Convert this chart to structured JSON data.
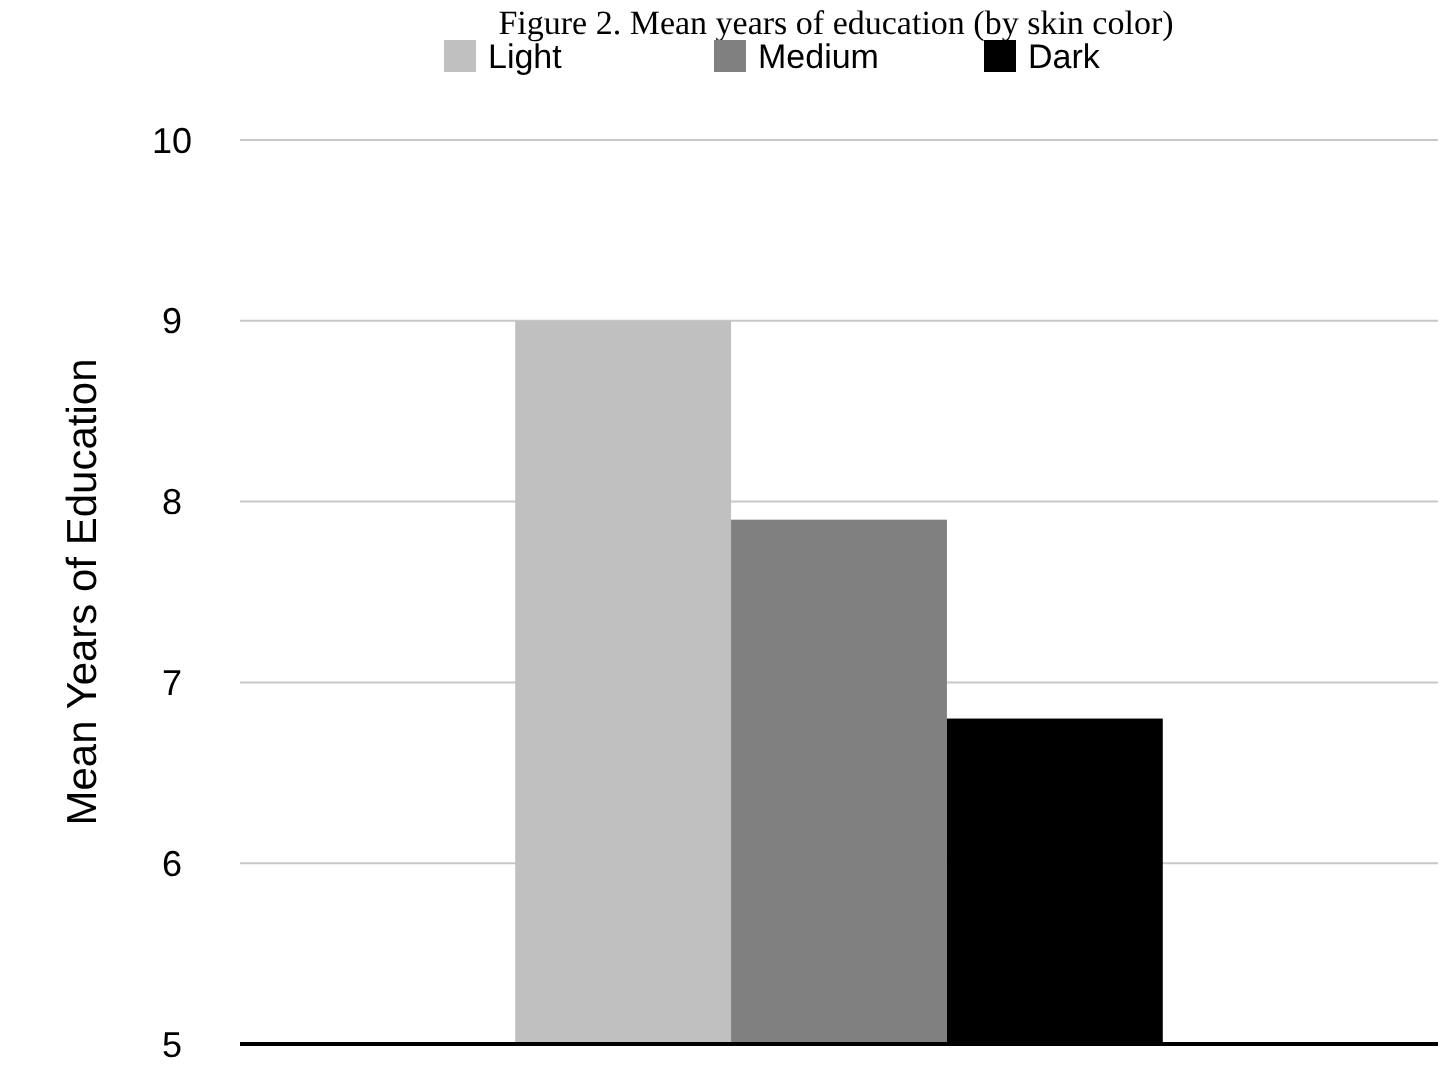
{
  "chart_data": {
    "type": "bar",
    "title": "Figure 2. Mean years of education (by skin color)",
    "ylabel": "Mean Years of Education",
    "categories": [
      null
    ],
    "series": [
      {
        "name": "Light",
        "color": "#c0c0c0",
        "values": [
          9.0
        ]
      },
      {
        "name": "Medium",
        "color": "#808080",
        "values": [
          7.9
        ]
      },
      {
        "name": "Dark",
        "color": "#000000",
        "values": [
          6.8
        ]
      }
    ],
    "ylim": [
      5,
      10
    ],
    "yticks": [
      5,
      6,
      7,
      8,
      9,
      10
    ],
    "grid": "y",
    "legend": "top"
  }
}
